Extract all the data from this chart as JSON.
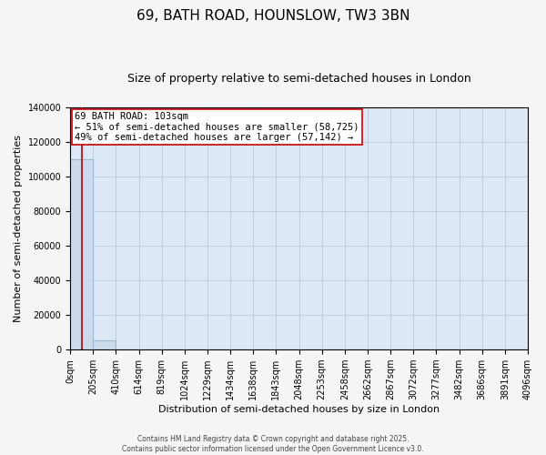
{
  "title": "69, BATH ROAD, HOUNSLOW, TW3 3BN",
  "subtitle": "Size of property relative to semi-detached houses in London",
  "xlabel": "Distribution of semi-detached houses by size in London",
  "ylabel": "Number of semi-detached properties",
  "footer_line1": "Contains HM Land Registry data © Crown copyright and database right 2025.",
  "footer_line2": "Contains public sector information licensed under the Open Government Licence v3.0.",
  "bin_edges": [
    0,
    205,
    410,
    614,
    819,
    1024,
    1229,
    1434,
    1638,
    1843,
    2048,
    2253,
    2458,
    2662,
    2867,
    3072,
    3277,
    3482,
    3686,
    3891,
    4096
  ],
  "bin_labels": [
    "0sqm",
    "205sqm",
    "410sqm",
    "614sqm",
    "819sqm",
    "1024sqm",
    "1229sqm",
    "1434sqm",
    "1638sqm",
    "1843sqm",
    "2048sqm",
    "2253sqm",
    "2458sqm",
    "2662sqm",
    "2867sqm",
    "3072sqm",
    "3277sqm",
    "3482sqm",
    "3686sqm",
    "3891sqm",
    "4096sqm"
  ],
  "bar_heights": [
    110000,
    5200,
    0,
    0,
    0,
    0,
    0,
    0,
    0,
    0,
    0,
    0,
    0,
    0,
    0,
    0,
    0,
    0,
    0,
    0
  ],
  "bar_color": "#ccdaeb",
  "bar_edge_color": "#a0b8d0",
  "property_size": 103,
  "property_line_color": "#bb0000",
  "annotation_line1": "69 BATH ROAD: 103sqm",
  "annotation_line2": "← 51% of semi-detached houses are smaller (58,725)",
  "annotation_line3": "49% of semi-detached houses are larger (57,142) →",
  "annotation_box_facecolor": "#ffffff",
  "annotation_box_edgecolor": "#cc0000",
  "ylim": [
    0,
    140000
  ],
  "yticks": [
    0,
    20000,
    40000,
    60000,
    80000,
    100000,
    120000,
    140000
  ],
  "plot_bg_color": "#dce8f5",
  "grid_color": "#b8c8d8",
  "fig_bg_color": "#f5f5f5",
  "title_fontsize": 11,
  "subtitle_fontsize": 9,
  "tick_fontsize": 7,
  "ylabel_fontsize": 8,
  "xlabel_fontsize": 8,
  "annotation_fontsize": 7.5
}
